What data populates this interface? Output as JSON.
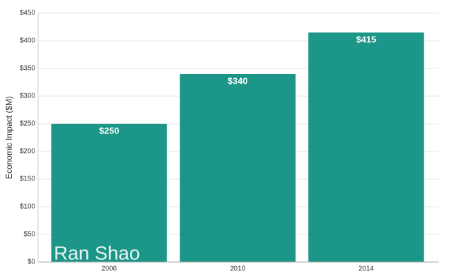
{
  "chart_data": {
    "type": "bar",
    "y_label": "Economic Impact ($M)",
    "categories": [
      "2006",
      "2010",
      "2014"
    ],
    "values": [
      250,
      340,
      415
    ],
    "value_labels": [
      "$250",
      "$340",
      "$415"
    ],
    "color": "#1b9688",
    "ylim": [
      0,
      450
    ],
    "yticks": [
      {
        "value": 0,
        "label": "$0"
      },
      {
        "value": 50,
        "label": "$50"
      },
      {
        "value": 100,
        "label": "$100"
      },
      {
        "value": 150,
        "label": "$150"
      },
      {
        "value": 200,
        "label": "$200"
      },
      {
        "value": 250,
        "label": "$250"
      },
      {
        "value": 300,
        "label": "$300"
      },
      {
        "value": 350,
        "label": "$350"
      },
      {
        "value": 400,
        "label": "$400"
      },
      {
        "value": 450,
        "label": "$450"
      }
    ],
    "grid": true
  },
  "watermark": "Ran Shao"
}
